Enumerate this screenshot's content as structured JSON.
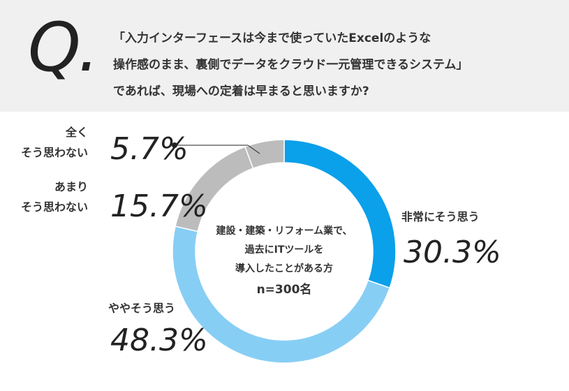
{
  "question": {
    "mark": "Q.",
    "text": "「入力インターフェースは今まで使っていたExcelのような\n操作感のまま、裏側でデータをクラウド一元管理できるシステム」\nであれば、現場への定着は早まると思いますか?"
  },
  "chart_data": {
    "type": "donut",
    "center_text": "建設・建築・リフォーム業で、\n過去にITツールを\n導入したことがある方",
    "sample_size": "n=300名",
    "categories": [
      "非常にそう思う",
      "ややそう思う",
      "あまり\nそう思わない",
      "全く\nそう思わない"
    ],
    "values": [
      30.3,
      48.3,
      15.7,
      5.7
    ],
    "value_labels": [
      "30.3%",
      "48.3%",
      "15.7%",
      "5.7%"
    ],
    "colors": [
      "#0aa0ea",
      "#87cef5",
      "#bcbcbc",
      "#bcbcbc"
    ]
  }
}
